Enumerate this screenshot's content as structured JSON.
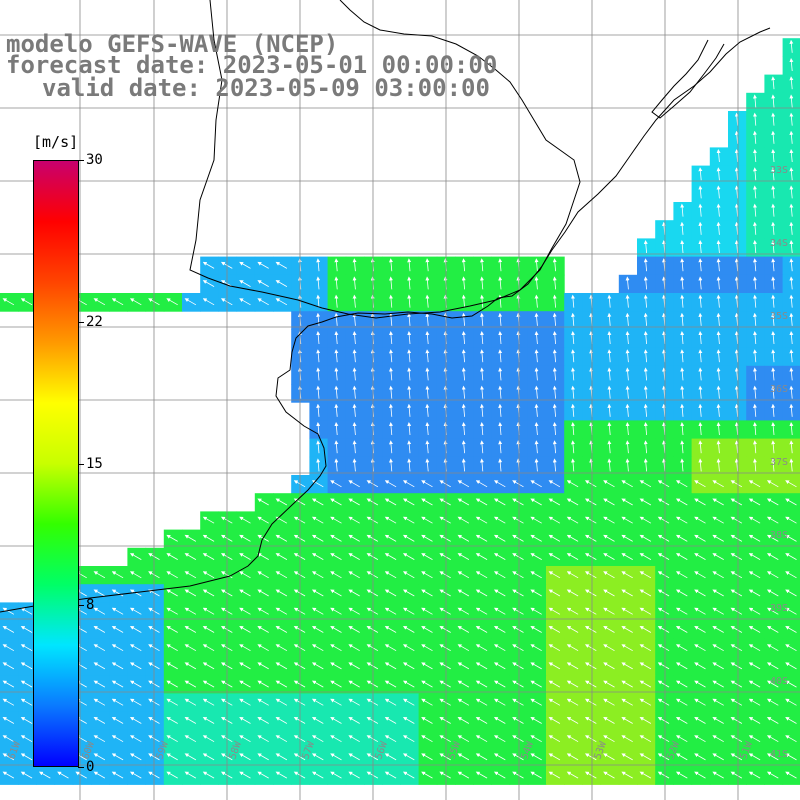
{
  "title": {
    "line1": "modelo GEFS-WAVE (NCEP)",
    "line2": "forecast date: 2023-05-01 00:00:00",
    "line3": "valid date: 2023-05-09 03:00:00"
  },
  "colorbar": {
    "unit": "[m/s]",
    "min": 0,
    "max": 30,
    "ticks": [
      {
        "label": "30",
        "value": 30
      },
      {
        "label": "22",
        "value": 22
      },
      {
        "label": "15",
        "value": 15
      },
      {
        "label": "8",
        "value": 8
      },
      {
        "label": "0",
        "value": 0
      }
    ],
    "stops": [
      "#0000ff",
      "#0a7aff",
      "#00e6ff",
      "#00ff66",
      "#33ff00",
      "#c8ff00",
      "#ffff00",
      "#ff9900",
      "#ff4400",
      "#ff0000",
      "#c8006e"
    ]
  },
  "lat_labels": [
    "33S",
    "34S",
    "35S",
    "36S",
    "37S",
    "38S",
    "39S",
    "40S",
    "41S"
  ],
  "lon_labels": [
    "61W",
    "60W",
    "59W",
    "58W",
    "57W",
    "56W",
    "55W",
    "54W",
    "53W",
    "52W",
    "51W"
  ],
  "wind_regions": {
    "calm_blue": "#2f8cf2",
    "light_blue": "#1fb4f6",
    "cyan": "#19d8f0",
    "green_cyan": "#18e8b0",
    "green": "#22ee44",
    "yellow_green": "#8cee22"
  }
}
